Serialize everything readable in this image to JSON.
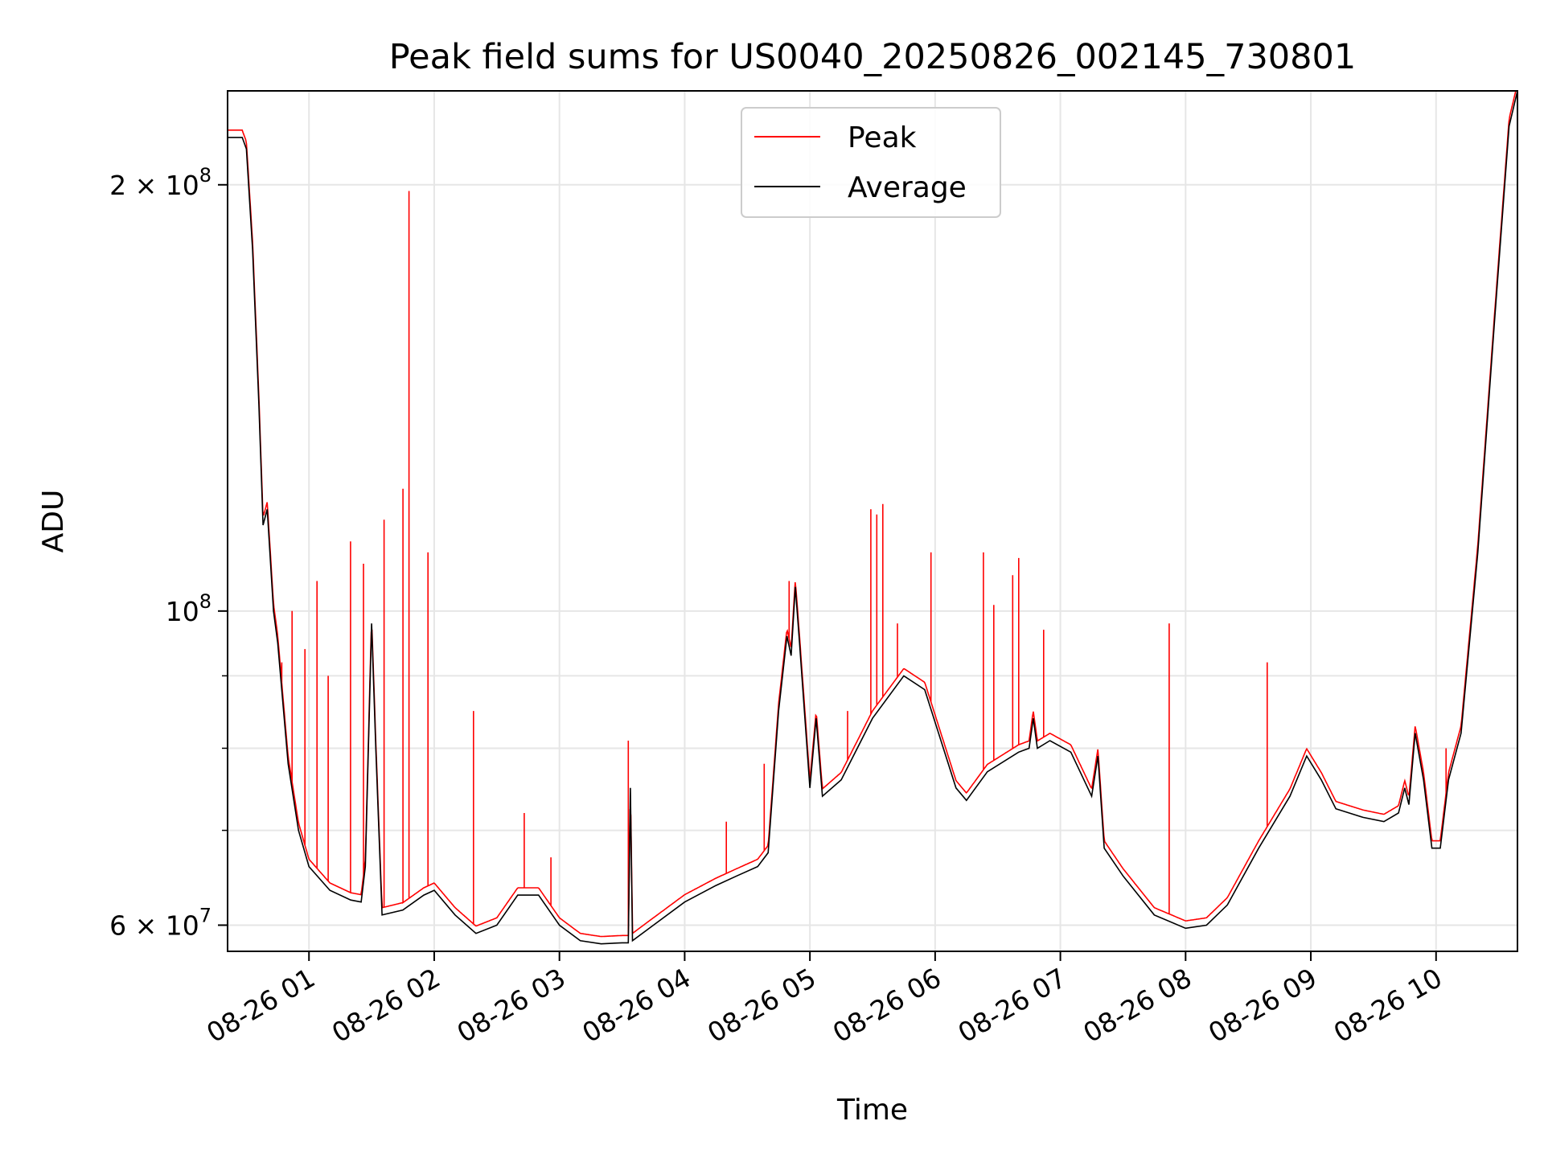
{
  "chart_data": {
    "type": "line",
    "title": "Peak field sums for US0040_20250826_002145_730801",
    "xlabel": "Time",
    "ylabel": "ADU",
    "yscale": "log",
    "grid": true,
    "legend_position": "top-center",
    "x_range": [
      "2025-08-26 00:21",
      "2025-08-26 10:39"
    ],
    "ylim": [
      57500000,
      233000000
    ],
    "x_ticks": [
      {
        "t": "2025-08-26 01:00",
        "label": "08-26 01"
      },
      {
        "t": "2025-08-26 02:00",
        "label": "08-26 02"
      },
      {
        "t": "2025-08-26 03:00",
        "label": "08-26 03"
      },
      {
        "t": "2025-08-26 04:00",
        "label": "08-26 04"
      },
      {
        "t": "2025-08-26 05:00",
        "label": "08-26 05"
      },
      {
        "t": "2025-08-26 06:00",
        "label": "08-26 06"
      },
      {
        "t": "2025-08-26 07:00",
        "label": "08-26 07"
      },
      {
        "t": "2025-08-26 08:00",
        "label": "08-26 08"
      },
      {
        "t": "2025-08-26 09:00",
        "label": "08-26 09"
      },
      {
        "t": "2025-08-26 10:00",
        "label": "08-26 10"
      }
    ],
    "y_major_ticks": [
      {
        "value": 60000000,
        "base": "6 × 10",
        "exp": "7"
      },
      {
        "value": 100000000,
        "base": "10",
        "exp": "8"
      },
      {
        "value": 200000000,
        "base": "2 × 10",
        "exp": "8"
      }
    ],
    "y_minor_ticks": [
      70000000,
      80000000,
      90000000
    ],
    "series": [
      {
        "name": "Peak",
        "color": "#ff0000",
        "spikes": [
          {
            "t": "2025-08-26 00:47",
            "value": 92000000
          },
          {
            "t": "2025-08-26 00:52",
            "value": 100000000
          },
          {
            "t": "2025-08-26 00:58",
            "value": 94000000
          },
          {
            "t": "2025-08-26 01:04",
            "value": 105000000
          },
          {
            "t": "2025-08-26 01:09",
            "value": 90000000
          },
          {
            "t": "2025-08-26 01:20",
            "value": 112000000
          },
          {
            "t": "2025-08-26 01:26",
            "value": 108000000
          },
          {
            "t": "2025-08-26 01:36",
            "value": 116000000
          },
          {
            "t": "2025-08-26 01:45",
            "value": 122000000
          },
          {
            "t": "2025-08-26 01:48",
            "value": 198000000
          },
          {
            "t": "2025-08-26 01:57",
            "value": 110000000
          },
          {
            "t": "2025-08-26 02:19",
            "value": 85000000
          },
          {
            "t": "2025-08-26 02:43",
            "value": 72000000
          },
          {
            "t": "2025-08-26 02:56",
            "value": 67000000
          },
          {
            "t": "2025-08-26 03:33",
            "value": 81000000
          },
          {
            "t": "2025-08-26 04:20",
            "value": 71000000
          },
          {
            "t": "2025-08-26 04:38",
            "value": 78000000
          },
          {
            "t": "2025-08-26 04:50",
            "value": 105000000
          },
          {
            "t": "2025-08-26 05:18",
            "value": 85000000
          },
          {
            "t": "2025-08-26 05:29",
            "value": 118000000
          },
          {
            "t": "2025-08-26 05:32",
            "value": 117000000
          },
          {
            "t": "2025-08-26 05:35",
            "value": 119000000
          },
          {
            "t": "2025-08-26 05:42",
            "value": 98000000
          },
          {
            "t": "2025-08-26 05:58",
            "value": 110000000
          },
          {
            "t": "2025-08-26 06:23",
            "value": 110000000
          },
          {
            "t": "2025-08-26 06:28",
            "value": 101000000
          },
          {
            "t": "2025-08-26 06:37",
            "value": 106000000
          },
          {
            "t": "2025-08-26 06:40",
            "value": 109000000
          },
          {
            "t": "2025-08-26 06:52",
            "value": 97000000
          },
          {
            "t": "2025-08-26 07:52",
            "value": 98000000
          },
          {
            "t": "2025-08-26 08:39",
            "value": 92000000
          },
          {
            "t": "2025-08-26 10:05",
            "value": 80000000
          }
        ]
      },
      {
        "name": "Average",
        "color": "#000000",
        "points": [
          [
            "2025-08-26 00:21",
            216000000
          ],
          [
            "2025-08-26 00:28",
            216000000
          ],
          [
            "2025-08-26 00:30",
            212000000
          ],
          [
            "2025-08-26 00:33",
            180000000
          ],
          [
            "2025-08-26 00:36",
            140000000
          ],
          [
            "2025-08-26 00:38",
            115000000
          ],
          [
            "2025-08-26 00:40",
            118000000
          ],
          [
            "2025-08-26 00:43",
            100000000
          ],
          [
            "2025-08-26 00:45",
            95000000
          ],
          [
            "2025-08-26 00:50",
            78000000
          ],
          [
            "2025-08-26 00:55",
            70000000
          ],
          [
            "2025-08-26 01:00",
            66000000
          ],
          [
            "2025-08-26 01:10",
            63500000
          ],
          [
            "2025-08-26 01:20",
            62500000
          ],
          [
            "2025-08-26 01:25",
            62300000
          ],
          [
            "2025-08-26 01:27",
            66000000
          ],
          [
            "2025-08-26 01:30",
            98000000
          ],
          [
            "2025-08-26 01:32",
            80000000
          ],
          [
            "2025-08-26 01:35",
            61000000
          ],
          [
            "2025-08-26 01:45",
            61500000
          ],
          [
            "2025-08-26 01:55",
            63000000
          ],
          [
            "2025-08-26 02:00",
            63500000
          ],
          [
            "2025-08-26 02:10",
            61000000
          ],
          [
            "2025-08-26 02:20",
            59200000
          ],
          [
            "2025-08-26 02:30",
            60000000
          ],
          [
            "2025-08-26 02:40",
            63000000
          ],
          [
            "2025-08-26 02:50",
            63000000
          ],
          [
            "2025-08-26 03:00",
            60000000
          ],
          [
            "2025-08-26 03:10",
            58500000
          ],
          [
            "2025-08-26 03:20",
            58200000
          ],
          [
            "2025-08-26 03:30",
            58300000
          ],
          [
            "2025-08-26 03:33",
            58300000
          ],
          [
            "2025-08-26 03:34",
            75000000
          ],
          [
            "2025-08-26 03:35",
            58500000
          ],
          [
            "2025-08-26 03:45",
            60000000
          ],
          [
            "2025-08-26 04:00",
            62300000
          ],
          [
            "2025-08-26 04:15",
            64000000
          ],
          [
            "2025-08-26 04:25",
            65000000
          ],
          [
            "2025-08-26 04:35",
            66000000
          ],
          [
            "2025-08-26 04:40",
            67500000
          ],
          [
            "2025-08-26 04:45",
            85000000
          ],
          [
            "2025-08-26 04:49",
            96000000
          ],
          [
            "2025-08-26 04:51",
            93000000
          ],
          [
            "2025-08-26 04:53",
            104000000
          ],
          [
            "2025-08-26 04:55",
            95000000
          ],
          [
            "2025-08-26 05:00",
            75000000
          ],
          [
            "2025-08-26 05:03",
            84000000
          ],
          [
            "2025-08-26 05:06",
            74000000
          ],
          [
            "2025-08-26 05:15",
            76000000
          ],
          [
            "2025-08-26 05:30",
            84000000
          ],
          [
            "2025-08-26 05:45",
            90000000
          ],
          [
            "2025-08-26 05:55",
            88000000
          ],
          [
            "2025-08-26 06:10",
            75000000
          ],
          [
            "2025-08-26 06:15",
            73500000
          ],
          [
            "2025-08-26 06:25",
            77000000
          ],
          [
            "2025-08-26 06:40",
            79500000
          ],
          [
            "2025-08-26 06:45",
            80000000
          ],
          [
            "2025-08-26 06:47",
            84000000
          ],
          [
            "2025-08-26 06:49",
            80000000
          ],
          [
            "2025-08-26 06:55",
            81000000
          ],
          [
            "2025-08-26 07:05",
            79500000
          ],
          [
            "2025-08-26 07:15",
            74000000
          ],
          [
            "2025-08-26 07:18",
            79000000
          ],
          [
            "2025-08-26 07:21",
            68000000
          ],
          [
            "2025-08-26 07:30",
            65000000
          ],
          [
            "2025-08-26 07:45",
            61000000
          ],
          [
            "2025-08-26 08:00",
            59700000
          ],
          [
            "2025-08-26 08:10",
            60000000
          ],
          [
            "2025-08-26 08:20",
            62000000
          ],
          [
            "2025-08-26 08:35",
            68000000
          ],
          [
            "2025-08-26 08:50",
            74000000
          ],
          [
            "2025-08-26 08:58",
            79000000
          ],
          [
            "2025-08-26 09:05",
            76000000
          ],
          [
            "2025-08-26 09:12",
            72500000
          ],
          [
            "2025-08-26 09:25",
            71500000
          ],
          [
            "2025-08-26 09:35",
            71000000
          ],
          [
            "2025-08-26 09:42",
            72000000
          ],
          [
            "2025-08-26 09:45",
            75000000
          ],
          [
            "2025-08-26 09:47",
            73000000
          ],
          [
            "2025-08-26 09:50",
            82000000
          ],
          [
            "2025-08-26 09:54",
            76000000
          ],
          [
            "2025-08-26 09:58",
            68000000
          ],
          [
            "2025-08-26 10:02",
            68000000
          ],
          [
            "2025-08-26 10:06",
            76000000
          ],
          [
            "2025-08-26 10:12",
            82000000
          ],
          [
            "2025-08-26 10:20",
            110000000
          ],
          [
            "2025-08-26 10:28",
            160000000
          ],
          [
            "2025-08-26 10:35",
            220000000
          ],
          [
            "2025-08-26 10:39",
            233000000
          ]
        ]
      }
    ]
  }
}
